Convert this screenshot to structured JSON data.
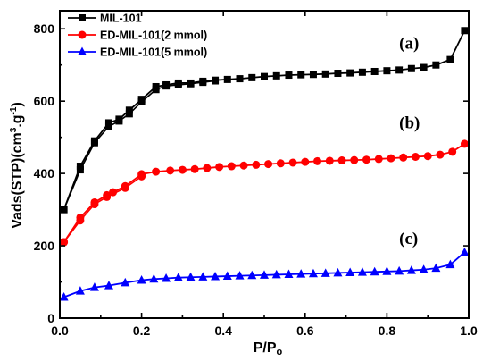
{
  "chart_data": {
    "type": "line",
    "title": "",
    "xlabel": "P/P",
    "xlabel_sub": "o",
    "ylabel": "Vads(STP)(cm",
    "ylabel_sup1": "3",
    "ylabel_mid": ".g",
    "ylabel_sup2": "-1",
    "ylabel_end": ")",
    "xlim": [
      0.0,
      1.0
    ],
    "ylim": [
      0,
      850
    ],
    "x_ticks": [
      0.0,
      0.2,
      0.4,
      0.6,
      0.8,
      1.0
    ],
    "x_tick_labels": [
      "0.0",
      "0.2",
      "0.4",
      "0.6",
      "0.8",
      "1.0"
    ],
    "y_ticks": [
      0,
      200,
      400,
      600,
      800
    ],
    "y_tick_labels": [
      "0",
      "200",
      "400",
      "600",
      "800"
    ],
    "grid": false,
    "legend_position": "top-left",
    "series": [
      {
        "name": "MIL-101",
        "color": "#000000",
        "marker": "square",
        "annotation": "(a)",
        "x": [
          0.01,
          0.05,
          0.085,
          0.12,
          0.145,
          0.17,
          0.2,
          0.235,
          0.26,
          0.29,
          0.32,
          0.35,
          0.38,
          0.41,
          0.44,
          0.47,
          0.5,
          0.53,
          0.56,
          0.59,
          0.62,
          0.65,
          0.68,
          0.71,
          0.74,
          0.77,
          0.8,
          0.83,
          0.86,
          0.89,
          0.92,
          0.955,
          0.99
        ],
        "y": [
          300,
          420,
          490,
          540,
          550,
          575,
          605,
          640,
          645,
          650,
          650,
          655,
          658,
          660,
          662,
          665,
          668,
          670,
          672,
          673,
          674,
          675,
          677,
          678,
          680,
          682,
          684,
          686,
          690,
          693,
          700,
          715,
          795
        ],
        "x_desorption": [
          0.01,
          0.05,
          0.085,
          0.12,
          0.145,
          0.17,
          0.2,
          0.235,
          0.26,
          0.29,
          0.32,
          0.35,
          0.38
        ],
        "y_desorption": [
          300,
          410,
          485,
          530,
          545,
          565,
          598,
          632,
          642,
          645,
          648,
          652,
          656
        ]
      },
      {
        "name": "ED-MIL-101(2 mmol)",
        "color": "#ff0000",
        "marker": "circle",
        "annotation": "(b)",
        "x": [
          0.01,
          0.05,
          0.085,
          0.115,
          0.13,
          0.16,
          0.2,
          0.235,
          0.27,
          0.3,
          0.33,
          0.36,
          0.39,
          0.42,
          0.45,
          0.48,
          0.51,
          0.54,
          0.57,
          0.6,
          0.63,
          0.66,
          0.69,
          0.72,
          0.75,
          0.78,
          0.81,
          0.84,
          0.87,
          0.9,
          0.93,
          0.96,
          0.99
        ],
        "y": [
          210,
          278,
          320,
          340,
          348,
          365,
          398,
          405,
          408,
          410,
          412,
          415,
          418,
          420,
          422,
          424,
          426,
          428,
          430,
          432,
          434,
          435,
          436,
          437,
          438,
          440,
          442,
          444,
          446,
          448,
          452,
          460,
          482
        ],
        "x_desorption": [
          0.01,
          0.05,
          0.085,
          0.115,
          0.16,
          0.2
        ],
        "y_desorption": [
          210,
          270,
          315,
          335,
          360,
          392
        ]
      },
      {
        "name": "ED-MIL-101(5 mmol)",
        "color": "#0000ff",
        "marker": "triangle",
        "annotation": "(c)",
        "x": [
          0.01,
          0.05,
          0.085,
          0.12,
          0.16,
          0.2,
          0.23,
          0.26,
          0.29,
          0.32,
          0.35,
          0.38,
          0.41,
          0.44,
          0.47,
          0.5,
          0.53,
          0.56,
          0.59,
          0.62,
          0.65,
          0.68,
          0.71,
          0.74,
          0.77,
          0.8,
          0.83,
          0.86,
          0.89,
          0.92,
          0.955,
          0.99
        ],
        "y": [
          58,
          75,
          85,
          90,
          98,
          105,
          108,
          110,
          112,
          113,
          114,
          115,
          116,
          117,
          118,
          119,
          120,
          121,
          122,
          123,
          124,
          125,
          126,
          127,
          128,
          129,
          130,
          132,
          134,
          138,
          148,
          182
        ]
      }
    ],
    "annotations": [
      "(a)",
      "(b)",
      "(c)"
    ]
  }
}
